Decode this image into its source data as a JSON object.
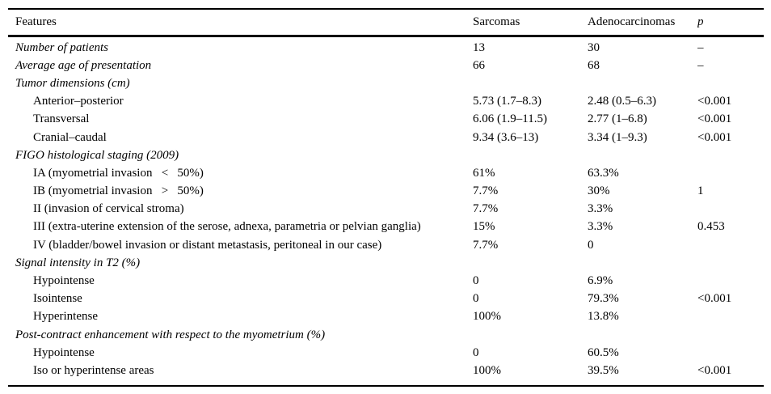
{
  "table": {
    "columns": [
      "Features",
      "Sarcomas",
      "Adenocarcinomas",
      "p"
    ],
    "rows": [
      {
        "feature": "Number of patients",
        "sarcomas": "13",
        "adenocarcinomas": "30",
        "p": "–"
      },
      {
        "feature": "Average age of presentation",
        "sarcomas": "66",
        "adenocarcinomas": "68",
        "p": "–"
      },
      {
        "feature": "Tumor dimensions (cm)",
        "sarcomas": "",
        "adenocarcinomas": "",
        "p": ""
      },
      {
        "feature": "Anterior–posterior",
        "sarcomas": "5.73 (1.7–8.3)",
        "adenocarcinomas": "2.48 (0.5–6.3)",
        "p": "<0.001"
      },
      {
        "feature": "Transversal",
        "sarcomas": "6.06 (1.9–11.5)",
        "adenocarcinomas": "2.77 (1–6.8)",
        "p": "<0.001"
      },
      {
        "feature": "Cranial–caudal",
        "sarcomas": "9.34 (3.6–13)",
        "adenocarcinomas": "3.34 (1–9.3)",
        "p": "<0.001"
      },
      {
        "feature": "FIGO histological staging (2009)",
        "sarcomas": "",
        "adenocarcinomas": "",
        "p": ""
      },
      {
        "feature": "IA (myometrial invasion   <   50%)",
        "sarcomas": "61%",
        "adenocarcinomas": "63.3%",
        "p": ""
      },
      {
        "feature": "IB (myometrial invasion   >   50%)",
        "sarcomas": "7.7%",
        "adenocarcinomas": "30%",
        "p": "1"
      },
      {
        "feature": "II (invasion of cervical stroma)",
        "sarcomas": "7.7%",
        "adenocarcinomas": "3.3%",
        "p": ""
      },
      {
        "feature": "III (extra-uterine extension of the serose, adnexa, parametria or pelvian ganglia)",
        "sarcomas": "15%",
        "adenocarcinomas": "3.3%",
        "p": "0.453"
      },
      {
        "feature": "IV (bladder/bowel invasion or distant metastasis, peritoneal in our case)",
        "sarcomas": "7.7%",
        "adenocarcinomas": "0",
        "p": ""
      },
      {
        "feature": "Signal intensity in T2 (%)",
        "sarcomas": "",
        "adenocarcinomas": "",
        "p": ""
      },
      {
        "feature": "Hypointense",
        "sarcomas": "0",
        "adenocarcinomas": "6.9%",
        "p": ""
      },
      {
        "feature": "Isointense",
        "sarcomas": "0",
        "adenocarcinomas": "79.3%",
        "p": "<0.001"
      },
      {
        "feature": "Hyperintense",
        "sarcomas": "100%",
        "adenocarcinomas": "13.8%",
        "p": ""
      },
      {
        "feature": "Post-contract enhancement with respect to the myometrium (%)",
        "sarcomas": "",
        "adenocarcinomas": "",
        "p": ""
      },
      {
        "feature": "Hypointense",
        "sarcomas": "0",
        "adenocarcinomas": "60.5%",
        "p": ""
      },
      {
        "feature": "Iso or hyperintense areas",
        "sarcomas": "100%",
        "adenocarcinomas": "39.5%",
        "p": "<0.001"
      }
    ]
  }
}
